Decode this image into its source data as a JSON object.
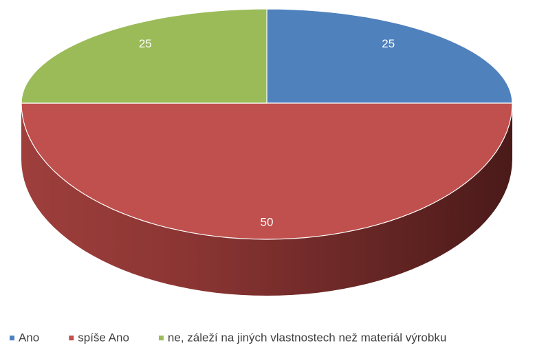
{
  "chart_data": {
    "type": "pie",
    "categories": [
      "Ano",
      "spíše Ano",
      "ne, záleží na jiných vlastnostech než materiál výrobku"
    ],
    "values": [
      25,
      50,
      25
    ],
    "colors": [
      "#4f81bd",
      "#c0504d",
      "#9bbb59"
    ]
  }
}
